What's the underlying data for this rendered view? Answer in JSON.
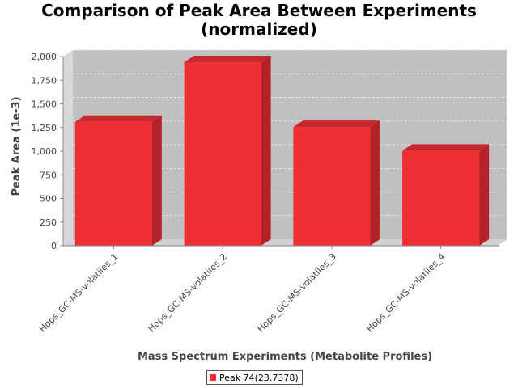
{
  "chart_data": {
    "type": "bar",
    "title": [
      "Comparison of Peak Area Between Experiments",
      "(normalized)"
    ],
    "xlabel": "Mass Spectrum Experiments (Metabolite Profiles)",
    "ylabel": "Peak Area (1e-3)",
    "categories": [
      "Hops_GC-MS-volatiles_1",
      "Hops_GC-MS-volatiles_2",
      "Hops_GC-MS-volatiles_3",
      "Hops_GC-MS-volatiles_4"
    ],
    "series": [
      {
        "name": "Peak 74(23.7378)",
        "values": [
          1310,
          1940,
          1255,
          1005
        ],
        "color": "#ee2e33"
      }
    ],
    "ylim": [
      0,
      2000
    ],
    "yticks": [
      0,
      250,
      500,
      750,
      1000,
      1250,
      1500,
      1750,
      2000
    ],
    "ytick_labels": [
      "0",
      "250",
      "500",
      "750",
      "1,000",
      "1,250",
      "1,500",
      "1,750",
      "2,000"
    ],
    "grid": true,
    "style": "3d",
    "legend_position": "bottom",
    "colors": {
      "plot_background": "#c0c0c0",
      "bar": "#ee2e33",
      "bar_side": "#b22228",
      "bar_top": "#c8282d"
    }
  }
}
